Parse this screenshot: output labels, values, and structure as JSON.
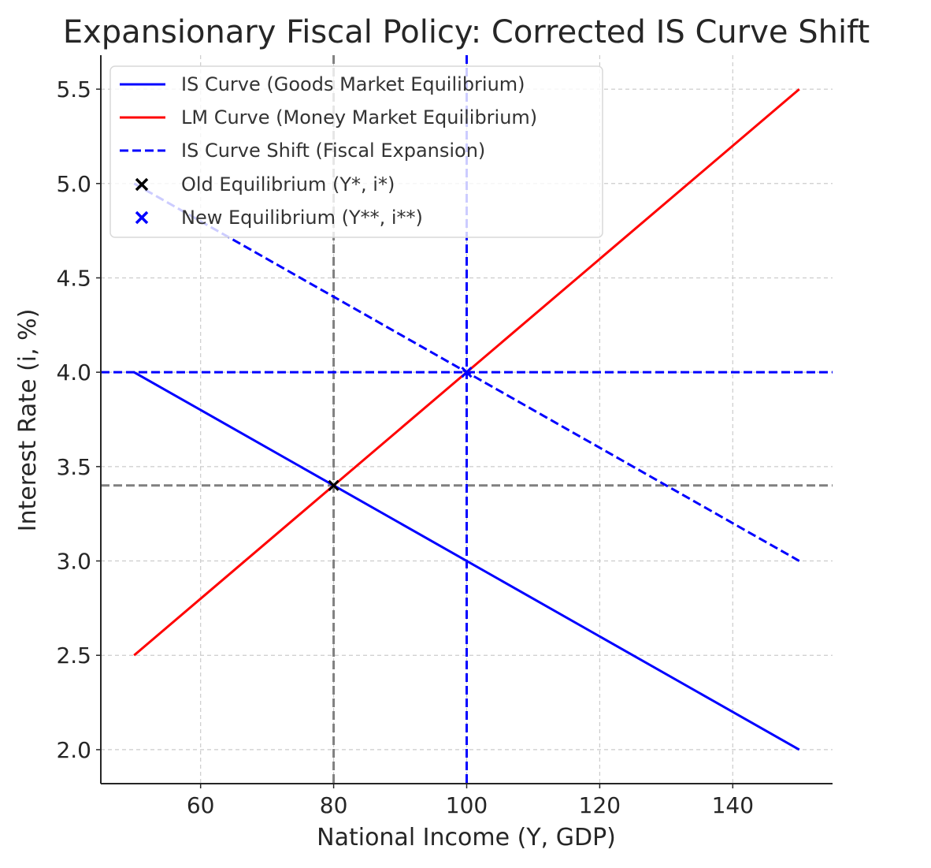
{
  "chart_data": {
    "type": "line",
    "title": "Expansionary Fiscal Policy: Corrected IS Curve Shift",
    "xlabel": "National Income (Y, GDP)",
    "ylabel": "Interest Rate (i, %)",
    "xlim": [
      45,
      155
    ],
    "ylim": [
      1.82,
      5.68
    ],
    "grid": true,
    "legend_position": "top-left",
    "x_ticks": [
      60,
      80,
      100,
      120,
      140
    ],
    "y_ticks": [
      2.0,
      2.5,
      3.0,
      3.5,
      4.0,
      4.5,
      5.0,
      5.5
    ],
    "x_tick_labels": [
      "60",
      "80",
      "100",
      "120",
      "140"
    ],
    "y_tick_labels": [
      "2.0",
      "2.5",
      "3.0",
      "3.5",
      "4.0",
      "4.5",
      "5.0",
      "5.5"
    ],
    "series": [
      {
        "name": "IS Curve (Goods Market Equilibrium)",
        "color": "#0000ff",
        "dash": "solid",
        "x": [
          50,
          150
        ],
        "y": [
          4.0,
          2.0
        ]
      },
      {
        "name": "LM Curve (Money Market Equilibrium)",
        "color": "#ff0000",
        "dash": "solid",
        "x": [
          50,
          150
        ],
        "y": [
          2.5,
          5.5
        ]
      },
      {
        "name": "IS Curve Shift (Fiscal Expansion)",
        "color": "#0000ff",
        "dash": "dashed",
        "x": [
          50,
          150
        ],
        "y": [
          5.0,
          3.0
        ]
      }
    ],
    "points": [
      {
        "name": "Old Equilibrium (Y*, i*)",
        "color": "#000000",
        "x": 80,
        "y": 3.4
      },
      {
        "name": "New Equilibrium (Y**, i**)",
        "color": "#0000ff",
        "x": 100,
        "y": 4.0
      }
    ],
    "reference_lines": [
      {
        "orientation": "vertical",
        "value": 80,
        "color": "#808080"
      },
      {
        "orientation": "horizontal",
        "value": 3.4,
        "color": "#808080"
      },
      {
        "orientation": "vertical",
        "value": 100,
        "color": "#0000ff"
      },
      {
        "orientation": "horizontal",
        "value": 4.0,
        "color": "#0000ff"
      }
    ]
  }
}
